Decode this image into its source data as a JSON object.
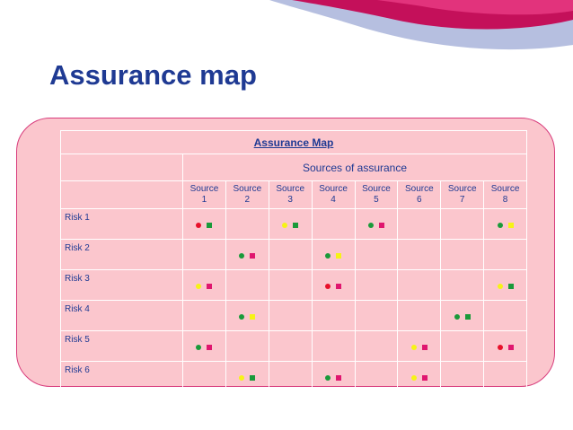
{
  "slide": {
    "title": "Assurance map"
  },
  "map": {
    "title": "Assurance Map",
    "sources_label": "Sources of assurance",
    "sources": [
      {
        "line1": "Source",
        "line2": "1"
      },
      {
        "line1": "Source",
        "line2": "2"
      },
      {
        "line1": "Source",
        "line2": "3"
      },
      {
        "line1": "Source",
        "line2": "4"
      },
      {
        "line1": "Source",
        "line2": "5"
      },
      {
        "line1": "Source",
        "line2": "6"
      },
      {
        "line1": "Source",
        "line2": "7"
      },
      {
        "line1": "Source",
        "line2": "8"
      }
    ],
    "colors": {
      "red": "#e8102a",
      "green": "#1a9a3a",
      "yellow": "#f6f316",
      "magenta": "#e0166f"
    },
    "rows": [
      {
        "label": "Risk 1",
        "cells": [
          [
            "red",
            "green"
          ],
          null,
          [
            "yellow",
            "green"
          ],
          null,
          [
            "green",
            "magenta"
          ],
          null,
          null,
          [
            "green",
            "yellow"
          ]
        ]
      },
      {
        "label": "Risk 2",
        "cells": [
          null,
          [
            "green",
            "magenta"
          ],
          null,
          [
            "green",
            "yellow"
          ],
          null,
          null,
          null,
          null
        ]
      },
      {
        "label": "Risk 3",
        "cells": [
          [
            "yellow",
            "magenta"
          ],
          null,
          null,
          [
            "red",
            "magenta"
          ],
          null,
          null,
          null,
          [
            "yellow",
            "green"
          ]
        ]
      },
      {
        "label": "Risk 4",
        "cells": [
          null,
          [
            "green",
            "yellow"
          ],
          null,
          null,
          null,
          null,
          [
            "green",
            "green"
          ],
          null
        ]
      },
      {
        "label": "Risk 5",
        "cells": [
          [
            "green",
            "magenta"
          ],
          null,
          null,
          null,
          null,
          [
            "yellow",
            "magenta"
          ],
          null,
          [
            "red",
            "magenta"
          ]
        ]
      },
      {
        "label": "Risk 6",
        "cells": [
          null,
          [
            "yellow",
            "green"
          ],
          null,
          [
            "green",
            "magenta"
          ],
          null,
          [
            "yellow",
            "magenta"
          ],
          null,
          null
        ]
      }
    ]
  }
}
